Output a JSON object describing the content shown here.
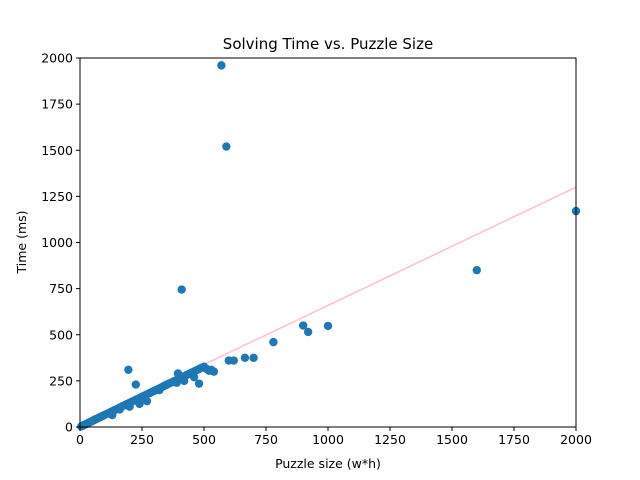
{
  "chart_data": {
    "type": "scatter",
    "title": "Solving Time vs. Puzzle Size",
    "xlabel": "Puzzle size (w*h)",
    "ylabel": "Time (ms)",
    "xlim": [
      0,
      2000
    ],
    "ylim": [
      0,
      2000
    ],
    "x_ticks": [
      "0",
      "250",
      "500",
      "750",
      "1000",
      "1250",
      "1500",
      "1750",
      "2000"
    ],
    "y_ticks": [
      "0",
      "250",
      "500",
      "750",
      "1000",
      "1250",
      "1500",
      "1750",
      "2000"
    ],
    "grid": false,
    "legend": "none",
    "point_color": "#1f77b4",
    "trend_color": "#ffc0cb",
    "trend_line": {
      "x": [
        0,
        2000
      ],
      "y": [
        18,
        1300
      ]
    },
    "series": [
      {
        "x": [
          5,
          10,
          15,
          20,
          25,
          30,
          35,
          40,
          45,
          50,
          55,
          60,
          65,
          70,
          75,
          80,
          85,
          90,
          95,
          100,
          110,
          120,
          130,
          140,
          150,
          160,
          170,
          180,
          190,
          200,
          210,
          220,
          230,
          240,
          250,
          260,
          270,
          280,
          290,
          300,
          310,
          320,
          330,
          340,
          350,
          360,
          370,
          380,
          390,
          400,
          410,
          420,
          430,
          440,
          450,
          460,
          470,
          480,
          490,
          500,
          510,
          520,
          530,
          540,
          130,
          160,
          200,
          240,
          270,
          320,
          350,
          390,
          420,
          460,
          480,
          195,
          225,
          395,
          410,
          570,
          590,
          600,
          620,
          665,
          700,
          780,
          900,
          920,
          1000,
          1600,
          2000
        ],
        "y": [
          3,
          6,
          10,
          13,
          16,
          20,
          23,
          26,
          29,
          33,
          36,
          40,
          43,
          46,
          49,
          53,
          56,
          59,
          62,
          66,
          72,
          79,
          85,
          92,
          98,
          105,
          112,
          118,
          125,
          131,
          138,
          144,
          151,
          157,
          164,
          170,
          177,
          183,
          190,
          196,
          203,
          209,
          216,
          223,
          229,
          236,
          242,
          249,
          255,
          262,
          268,
          275,
          282,
          288,
          295,
          301,
          308,
          314,
          321,
          327,
          315,
          305,
          310,
          300,
          65,
          95,
          110,
          125,
          140,
          200,
          230,
          240,
          250,
          270,
          235,
          310,
          230,
          290,
          745,
          1960,
          1520,
          360,
          360,
          375,
          375,
          460,
          550,
          515,
          548,
          850,
          1170
        ]
      }
    ]
  }
}
